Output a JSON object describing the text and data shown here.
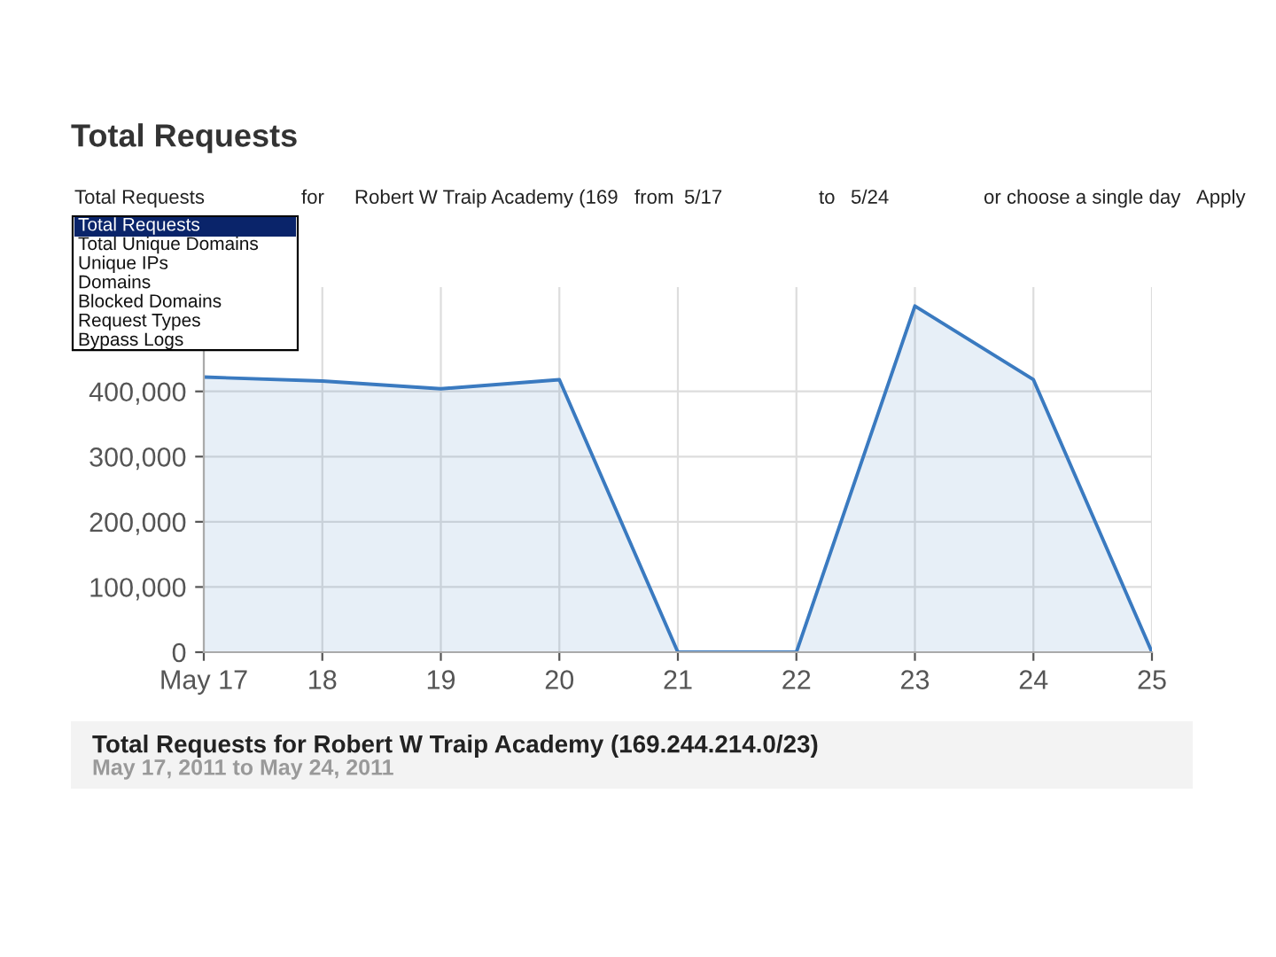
{
  "chart_data": {
    "type": "area",
    "title": "Total Requests",
    "subtitle": "May 17, 2011 to May 24, 2011",
    "categories": [
      "May 17",
      "18",
      "19",
      "20",
      "21",
      "22",
      "23",
      "24",
      "25"
    ],
    "series": [
      {
        "color": "#3a7ac0",
        "values": [
          422000,
          416000,
          404000,
          418000,
          0,
          0,
          531000,
          418000,
          0
        ]
      }
    ],
    "ylim": [
      0,
      560000
    ],
    "yticks": [
      0,
      {
        "value": 100000,
        "label": "100,000"
      },
      {
        "value": 200000,
        "label": "200,000"
      },
      {
        "value": 300000,
        "label": "300,000"
      },
      {
        "value": 400000,
        "label": "400,000"
      }
    ],
    "grid": true,
    "legend": false,
    "marker": "none",
    "line_style": "solid",
    "annotations": [
      "Total Requests",
      "for",
      "Robert W Traip Academy (169",
      "from",
      "5/17",
      "to",
      "5/24",
      "or choose a single day",
      "Apply",
      "Total Requests",
      "Total Unique Domains",
      "Unique IPs",
      "Domains",
      "Blocked Domains",
      "Request Types",
      "Bypass Logs",
      "Total Requests for Robert W Traip Academy (169.244.214.0/23)"
    ]
  }
}
